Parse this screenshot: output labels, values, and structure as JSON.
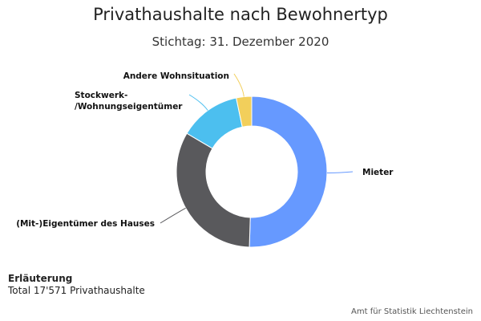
{
  "title": "Privathaushalte nach Bewohnertyp",
  "subtitle": "Stichtag: 31. Dezember 2020",
  "chart_data": {
    "type": "pie",
    "variant": "donut",
    "series": [
      {
        "values": [
          {
            "label": "Mieter",
            "value": 50.5,
            "color": "#6699ff"
          },
          {
            "label": "(Mit-)Eigentümer des Hauses",
            "value": 33.0,
            "color": "#59595c"
          },
          {
            "label": "Stockwerk-/Wohnungseigentümer",
            "value": 13.2,
            "color": "#4cbfef"
          },
          {
            "label": "Andere Wohnsituation",
            "value": 3.3,
            "color": "#f2cf5b"
          }
        ]
      }
    ],
    "legend": "none",
    "data_labels": "outside-with-connectors"
  },
  "note": {
    "heading": "Erläuterung",
    "text": "Total 17'571 Privathaushalte"
  },
  "credits": "Amt für Statistik Liechtenstein"
}
